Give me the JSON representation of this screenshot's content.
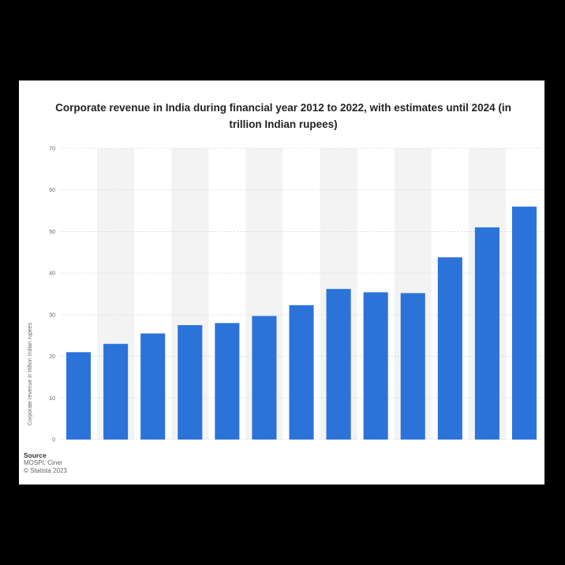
{
  "chart_data": {
    "type": "bar",
    "title": "Corporate revenue in India during financial year 2012 to 2022, with estimates until 2024 (in trillion Indian rupees)",
    "ylabel": "Corporate revenue in trillion Indian rupees",
    "xlabel": "",
    "categories": [
      "",
      "",
      "",
      "",
      "",
      "",
      "",
      "",
      "",
      "",
      "",
      "",
      ""
    ],
    "values": [
      21,
      23,
      25.5,
      27.5,
      28,
      29.7,
      32.3,
      36.2,
      35.4,
      35.2,
      43.8,
      51,
      56
    ],
    "ylim": [
      0,
      70
    ],
    "yticks": [
      "0",
      "10",
      "20",
      "30",
      "40",
      "50",
      "60",
      "70"
    ],
    "grid": true,
    "bar_color": "#2b73d9",
    "band_color": "#f3f3f3"
  },
  "source": {
    "heading": "Source",
    "line1": "MOSPI; Ciner",
    "line2": "© Statista 2023"
  }
}
